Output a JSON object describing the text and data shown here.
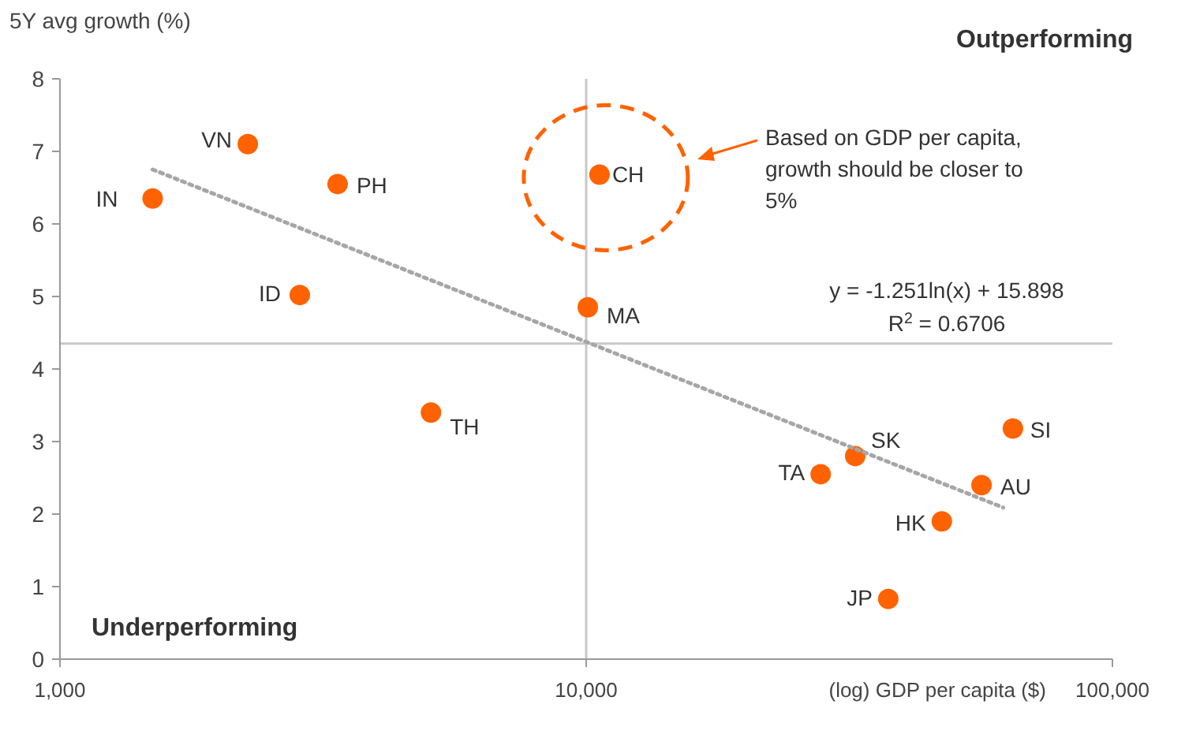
{
  "chart_data": {
    "type": "scatter",
    "ylabel": "5Y avg growth (%)",
    "xlabel": "(log) GDP per capita ($)",
    "log": "x",
    "xlim": [
      1000,
      100000
    ],
    "xticks": [
      {
        "value": 1000,
        "label": "1,000"
      },
      {
        "value": 10000,
        "label": "10,000"
      },
      {
        "value": 100000,
        "label": "100,000"
      }
    ],
    "ylim": [
      0,
      8
    ],
    "yticks": [
      0,
      1,
      2,
      3,
      4,
      5,
      6,
      7,
      8
    ],
    "grid": false,
    "marker": "circle",
    "series": [
      {
        "color": "#ff6200",
        "x": [
          1500,
          2275,
          3370,
          2856,
          5070,
          10070,
          10600,
          27900,
          32450,
          37500,
          47400,
          56400,
          64700
        ],
        "values": [
          6.35,
          7.1,
          6.55,
          5.02,
          3.4,
          4.85,
          6.68,
          2.55,
          2.8,
          0.83,
          1.9,
          2.4,
          3.18
        ]
      },
      {
        "type": "line",
        "color": "#a6a6a6",
        "line_style": "dotted",
        "marker": "none",
        "x": [
          1500,
          62000
        ],
        "values": [
          6.75,
          2.09
        ]
      }
    ],
    "ref_lines": [
      {
        "axis": "x",
        "value": 10000,
        "color": "#c8c8c8"
      },
      {
        "axis": "y",
        "value": 4.35,
        "color": "#c8c8c8"
      }
    ],
    "annotations": [
      "Outperforming",
      "Underperforming",
      "Based on GDP per capita, growth should be closer to 5%",
      "y = -1.251ln(x) + 15.898",
      "R$^{2}$ = 0.6706",
      {
        "text": "IN",
        "x": 1500,
        "y": 6.35
      },
      {
        "text": "VN",
        "x": 2275,
        "y": 7.1
      },
      {
        "text": "PH",
        "x": 3370,
        "y": 6.55
      },
      {
        "text": "ID",
        "x": 2856,
        "y": 5.02
      },
      {
        "text": "TH",
        "x": 5070,
        "y": 3.4
      },
      {
        "text": "MA",
        "x": 10070,
        "y": 4.85
      },
      {
        "text": "CH",
        "x": 10600,
        "y": 6.68
      },
      {
        "text": "TA",
        "x": 27900,
        "y": 2.55
      },
      {
        "text": "SK",
        "x": 32450,
        "y": 2.8
      },
      {
        "text": "JP",
        "x": 37500,
        "y": 0.83
      },
      {
        "text": "HK",
        "x": 47400,
        "y": 1.9
      },
      {
        "text": "AU",
        "x": 56400,
        "y": 2.4
      },
      {
        "text": "SI",
        "x": 64700,
        "y": 3.18
      }
    ]
  }
}
